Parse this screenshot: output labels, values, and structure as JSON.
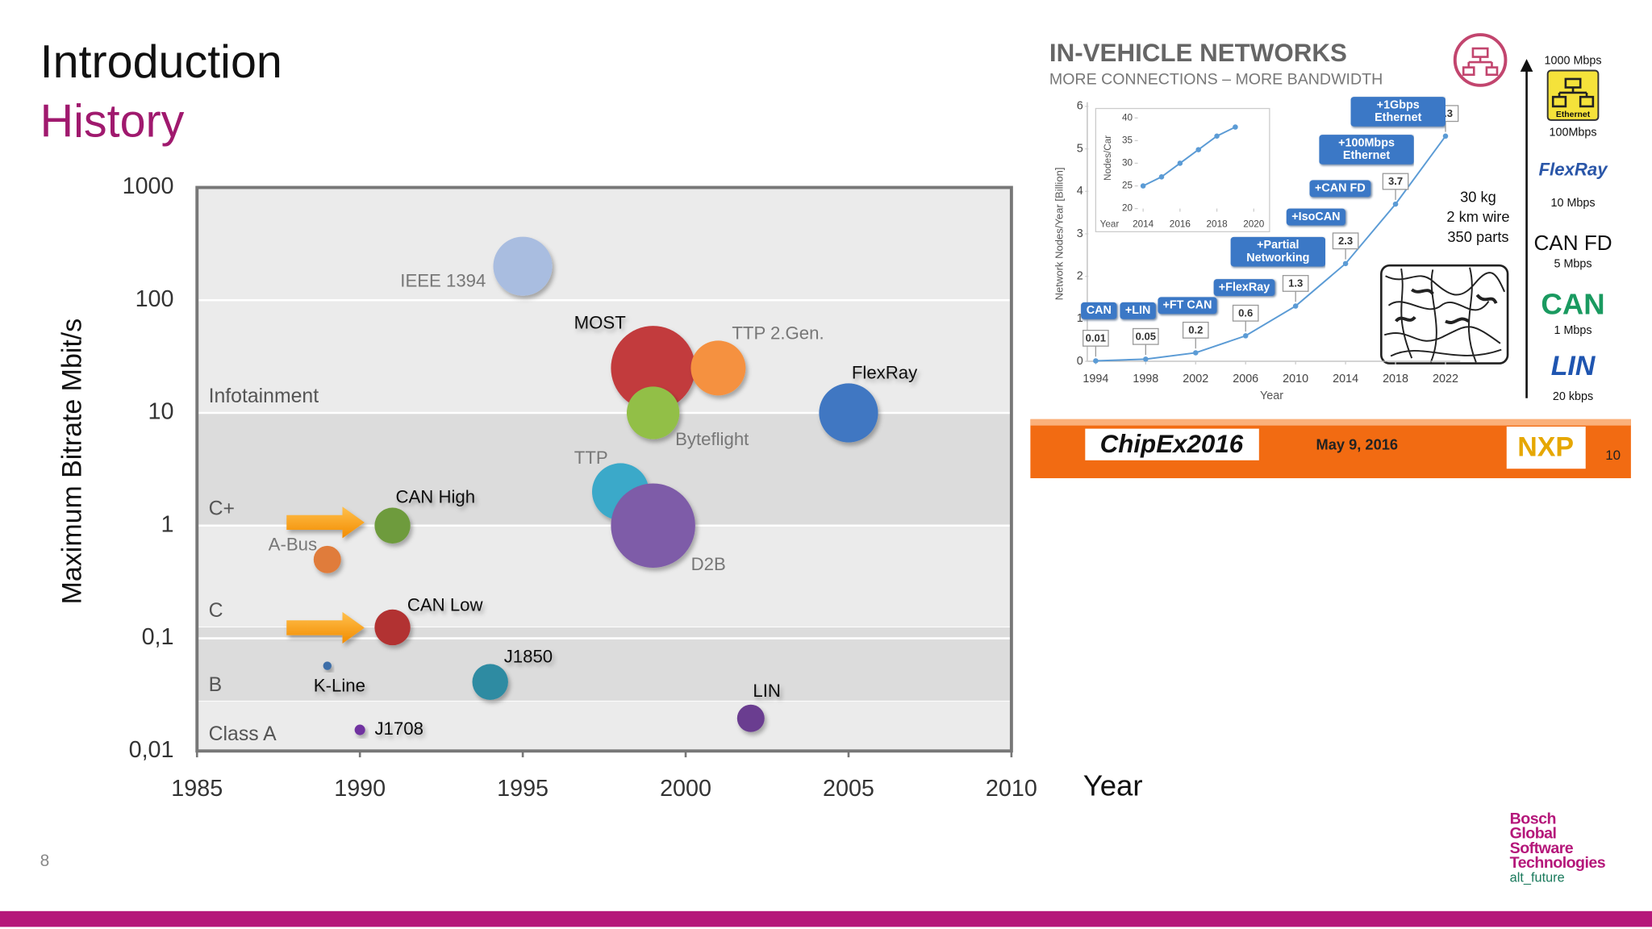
{
  "slide": {
    "title": "Introduction",
    "subtitle": "History",
    "page_number": 8,
    "logo": [
      "Bosch",
      "Global",
      "Software",
      "Technologies"
    ],
    "tagline": "alt_future"
  },
  "chart_data": [
    {
      "type": "bubble",
      "ylabel": "Maximum Bitrate Mbit/s",
      "xlabel": "Year",
      "xlim": [
        1985,
        2010
      ],
      "xticks": [
        1985,
        1990,
        1995,
        2000,
        2005,
        2010
      ],
      "ylim": [
        0.01,
        1000
      ],
      "log_y": true,
      "yticks": [
        {
          "value": 0.01,
          "label": "0,01"
        },
        {
          "value": 0.1,
          "label": "0,1"
        },
        1,
        10,
        100,
        1000
      ],
      "grid": true,
      "bands": [
        {
          "label": "Infotainment",
          "from": 10,
          "to": 1000,
          "color": "#ebebeb"
        },
        {
          "label": "C+",
          "from": 1,
          "to": 10,
          "color": "#dcdcdc"
        },
        {
          "label": "C",
          "from": 0.125,
          "to": 1,
          "color": "#ebebeb"
        },
        {
          "label": "B",
          "from": 0.0275,
          "to": 0.125,
          "color": "#dcdcdc"
        },
        {
          "label": "Class A",
          "from": 0.01,
          "to": 0.0275,
          "color": "#ebebeb"
        }
      ],
      "points": [
        {
          "name": "IEEE 1394",
          "x": 1995,
          "value": 200,
          "size": 28,
          "color": "#a9bde0"
        },
        {
          "name": "MOST",
          "x": 1999,
          "value": 25,
          "size": 40,
          "color": "#c23b3c"
        },
        {
          "name": "TTP 2.Gen.",
          "x": 2001,
          "value": 25,
          "size": 26,
          "color": "#f5913f"
        },
        {
          "name": "Byteflight",
          "x": 1999,
          "value": 10,
          "size": 25,
          "color": "#92bf47"
        },
        {
          "name": "FlexRay",
          "x": 2005,
          "value": 10,
          "size": 28,
          "color": "#3f77c2"
        },
        {
          "name": "TTP",
          "x": 1998,
          "value": 2,
          "size": 27,
          "color": "#3aa9c9"
        },
        {
          "name": "D2B",
          "x": 1999,
          "value": 1,
          "size": 40,
          "color": "#7e5ca8"
        },
        {
          "name": "CAN High",
          "x": 1991,
          "value": 1,
          "size": 17,
          "color": "#6e9b3d"
        },
        {
          "name": "A-Bus",
          "x": 1989,
          "value": 0.5,
          "size": 13,
          "color": "#e07c3a"
        },
        {
          "name": "CAN Low",
          "x": 1991,
          "value": 0.125,
          "size": 17,
          "color": "#b23232"
        },
        {
          "name": "K-Line",
          "x": 1989,
          "value": 0.057,
          "size": 4,
          "color": "#3d6ea8"
        },
        {
          "name": "J1850",
          "x": 1994,
          "value": 0.041,
          "size": 17,
          "color": "#2f8ba2"
        },
        {
          "name": "LIN",
          "x": 2002,
          "value": 0.0195,
          "size": 13,
          "color": "#6b3e90"
        },
        {
          "name": "J1708",
          "x": 1990,
          "value": 0.0154,
          "size": 5,
          "color": "#7030a0"
        }
      ]
    },
    {
      "type": "line",
      "title": "IN-VEHICLE NETWORKS",
      "subtitle": "MORE CONNECTIONS – MORE BANDWIDTH",
      "ylabel": "Network Nodes/Year [Billion]",
      "xlabel": "Year",
      "x": [
        1994,
        1998,
        2002,
        2006,
        2010,
        2014,
        2018,
        2022
      ],
      "xlim": [
        1994,
        2022
      ],
      "xticks": [
        1994,
        1998,
        2002,
        2006,
        2010,
        2014,
        2018,
        2022
      ],
      "ylim": [
        0,
        6
      ],
      "yticks": [
        0,
        1,
        2,
        3,
        4,
        5,
        6
      ],
      "data_labels": true,
      "series": [
        {
          "color": "#5b9bd5",
          "values": [
            0.01,
            0.05,
            0.2,
            0.6,
            1.3,
            2.3,
            3.7,
            5.3
          ]
        }
      ],
      "annotations": [
        "CAN",
        "+LIN",
        "+FT CAN",
        "+FlexRay",
        "+Partial Networking",
        "+IsoCAN",
        "+CAN FD",
        "+100Mbps Ethernet",
        "+1Gbps Ethernet"
      ]
    },
    {
      "type": "line",
      "ylabel": "Nodes/Car",
      "xlabel": "Year",
      "x": [
        2014,
        2015,
        2016,
        2017,
        2018,
        2019
      ],
      "xlim": [
        2014,
        2020
      ],
      "xticks": [
        2014,
        2016,
        2018,
        2020
      ],
      "ylim": [
        20,
        40
      ],
      "yticks": [
        20,
        25,
        30,
        35,
        40
      ],
      "series": [
        {
          "color": "#5b9bd5",
          "values": [
            25,
            27,
            30,
            33,
            36,
            38
          ]
        }
      ]
    }
  ],
  "inset": {
    "notes": [
      "30 kg",
      "2 km wire",
      "350 parts"
    ],
    "ladder": [
      "1000 Mbps",
      "Ethernet",
      "100Mbps",
      "FlexRay",
      "10 Mbps",
      "CAN FD",
      "5 Mbps",
      "CAN",
      "1 Mbps",
      "LIN",
      "20 kbps"
    ],
    "banner": {
      "event": "ChipEx2016",
      "date": "May 9, 2016",
      "logo": "NXP",
      "page": 10
    }
  }
}
